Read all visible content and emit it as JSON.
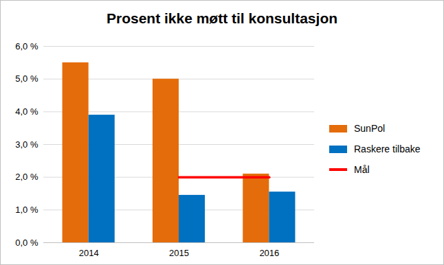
{
  "chart_data": {
    "type": "bar",
    "title": "Prosent ikke møtt til konsultasjon",
    "categories": [
      "2014",
      "2015",
      "2016"
    ],
    "series": [
      {
        "name": "SunPol",
        "color": "#e46c0a",
        "values": [
          5.5,
          5.0,
          2.1
        ]
      },
      {
        "name": "Raskere tilbake",
        "color": "#0070c0",
        "values": [
          3.9,
          1.45,
          1.55
        ]
      },
      {
        "name": "Mål",
        "color": "#ff0000",
        "type": "line",
        "values": [
          null,
          2.0,
          2.0
        ]
      }
    ],
    "ylim": [
      0,
      6
    ],
    "yticks": [
      {
        "value": 0,
        "label": "0,0 %"
      },
      {
        "value": 1,
        "label": "1,0 %"
      },
      {
        "value": 2,
        "label": "2,0 %"
      },
      {
        "value": 3,
        "label": "3,0 %"
      },
      {
        "value": 4,
        "label": "4,0 %"
      },
      {
        "value": 5,
        "label": "5,0 %"
      },
      {
        "value": 6,
        "label": "6,0 %"
      }
    ],
    "grid": true,
    "legend": "right"
  }
}
